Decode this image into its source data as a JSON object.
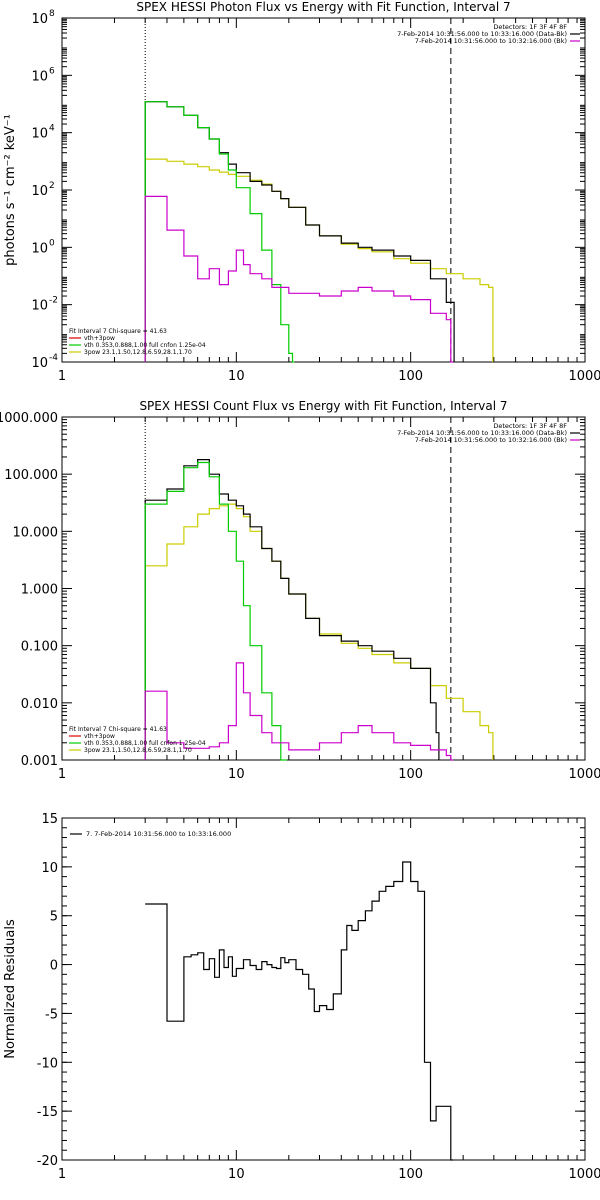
{
  "chart_data": [
    {
      "type": "line",
      "title": "SPEX HESSI Photon Flux vs Energy with Fit Function, Interval 7",
      "xlabel": "",
      "ylabel": "photons s⁻¹ cm⁻² keV⁻¹",
      "xscale": "log",
      "yscale": "log",
      "xlim": [
        1,
        1000
      ],
      "ylim": [
        0.0001,
        100000000
      ],
      "x_ticks": [
        1,
        10,
        100,
        1000
      ],
      "x_tick_labels": [
        "1",
        "10",
        "100",
        "1000"
      ],
      "y_ticks": [
        0.0001,
        0.01,
        1,
        100,
        10000,
        1000000,
        100000000
      ],
      "y_tick_labels": [
        "10",
        "10",
        "10",
        "10",
        "10",
        "10",
        "10"
      ],
      "y_tick_exponents": [
        "-4",
        "-2",
        "0",
        "2",
        "4",
        "6",
        "8"
      ],
      "vlines": [
        {
          "x": 3.0,
          "style": "dotted"
        },
        {
          "x": 170.0,
          "style": "dashed"
        }
      ],
      "legend_top_right": [
        {
          "text": "Detectors: 1F 3F 4F 8F",
          "color": ""
        },
        {
          "text": "7-Feb-2014 10:31:56.000 to 10:33:16.000 (Data-Bk)",
          "color": "#000000"
        },
        {
          "text": "7-Feb-2014 10:31:56.000 to 10:32:16.000 (Bk)",
          "color": "#cc00cc"
        }
      ],
      "legend_bottom_left": [
        {
          "text": "Fit Interval 7   Chi-square = 41.63",
          "color": ""
        },
        {
          "text": "vth+3pow",
          "color": "#dd0000"
        },
        {
          "text": "vth 0.353,0.888,1.00  full cnfon 1.25e-04",
          "color": "#00cc00"
        },
        {
          "text": "3pow 23.1,1.50,12.8,6.59,28.1,1.70",
          "color": "#cccc00"
        }
      ],
      "series": [
        {
          "color": "#cccc00",
          "x": [
            3,
            4,
            5,
            6,
            7,
            8,
            9,
            10,
            12,
            14,
            16,
            18,
            20,
            25,
            30,
            40,
            50,
            60,
            80,
            100,
            130,
            160,
            200,
            250,
            280
          ],
          "values": [
            1200,
            1000,
            800,
            650,
            500,
            420,
            350,
            300,
            220,
            160,
            90,
            50,
            25,
            6,
            2.5,
            1.3,
            0.9,
            0.7,
            0.4,
            0.28,
            0.18,
            0.12,
            0.08,
            0.05,
            0.04
          ]
        },
        {
          "color": "#000000",
          "x": [
            3,
            4,
            5,
            6,
            7,
            8,
            9,
            10,
            12,
            14,
            16,
            18,
            20,
            25,
            30,
            40,
            50,
            60,
            80,
            100,
            130,
            160
          ],
          "values": [
            120000,
            80000,
            40000,
            15000,
            6000,
            2000,
            800,
            400,
            200,
            150,
            90,
            50,
            25,
            6,
            2.5,
            1.4,
            1.0,
            0.8,
            0.5,
            0.35,
            0.08,
            0.012
          ]
        },
        {
          "color": "#00cc00",
          "x": [
            3,
            4,
            5,
            6,
            7,
            8,
            9,
            10,
            12,
            14,
            16,
            18,
            20,
            21
          ],
          "values": [
            120000,
            80000,
            40000,
            15000,
            6000,
            1800,
            500,
            120,
            15,
            0.8,
            0.05,
            0.002,
            0.0002,
            5e-05
          ]
        },
        {
          "color": "#cc00cc",
          "x": [
            3,
            4,
            5,
            6,
            7,
            8,
            9,
            10,
            11,
            12,
            14,
            16,
            20,
            30,
            40,
            50,
            60,
            80,
            100,
            130,
            160,
            170
          ],
          "values": [
            60,
            4,
            0.5,
            0.08,
            0.18,
            0.05,
            0.15,
            0.8,
            0.25,
            0.12,
            0.08,
            0.04,
            0.025,
            0.02,
            0.03,
            0.04,
            0.03,
            0.02,
            0.015,
            0.005,
            0.003,
            5e-05
          ]
        }
      ]
    },
    {
      "type": "line",
      "title": "SPEX HESSI Count Flux vs Energy with Fit Function, Interval 7",
      "xlabel": "",
      "ylabel": "",
      "xscale": "log",
      "yscale": "log",
      "xlim": [
        1,
        1000
      ],
      "ylim": [
        0.001,
        1000
      ],
      "x_ticks": [
        1,
        10,
        100,
        1000
      ],
      "x_tick_labels": [
        "1",
        "10",
        "100",
        "1000"
      ],
      "y_ticks": [
        0.001,
        0.01,
        0.1,
        1,
        10,
        100,
        1000
      ],
      "y_tick_labels": [
        "0.001",
        "0.010",
        "0.100",
        "1.000",
        "10.000",
        "100.000",
        "1000.000"
      ],
      "vlines": [
        {
          "x": 3.0,
          "style": "dotted"
        },
        {
          "x": 170.0,
          "style": "dashed"
        }
      ],
      "legend_top_right": [
        {
          "text": "Detectors: 1F 3F 4F 8F",
          "color": ""
        },
        {
          "text": "7-Feb-2014 10:31:56.000 to 10:33:16.000 (Data-Bk)",
          "color": "#000000"
        },
        {
          "text": "7-Feb-2014 10:31:56.000 to 10:32:16.000 (Bk)",
          "color": "#cc00cc"
        }
      ],
      "legend_bottom_left": [
        {
          "text": "Fit Interval 7   Chi-square = 41.63",
          "color": ""
        },
        {
          "text": "vth+3pow",
          "color": "#dd0000"
        },
        {
          "text": "vth 0.353,0.888,1.00  full cnfon 1.25e-04",
          "color": "#00cc00"
        },
        {
          "text": "3pow 23.1,1.50,12.8,6.59,28.1,1.70",
          "color": "#cccc00"
        }
      ],
      "series": [
        {
          "color": "#cccc00",
          "x": [
            3,
            4,
            5,
            6,
            7,
            8,
            9,
            10,
            11,
            12,
            14,
            16,
            18,
            20,
            25,
            30,
            40,
            50,
            60,
            80,
            100,
            130,
            160,
            200,
            250,
            280
          ],
          "values": [
            2.5,
            6,
            12,
            20,
            25,
            28,
            30,
            25,
            18,
            10,
            5,
            3,
            1.5,
            0.8,
            0.3,
            0.16,
            0.11,
            0.09,
            0.07,
            0.05,
            0.04,
            0.02,
            0.012,
            0.007,
            0.004,
            0.003
          ]
        },
        {
          "color": "#000000",
          "x": [
            3,
            4,
            5,
            6,
            7,
            8,
            9,
            10,
            11,
            12,
            14,
            16,
            18,
            20,
            25,
            30,
            40,
            50,
            60,
            80,
            100,
            130,
            140
          ],
          "values": [
            35,
            55,
            140,
            180,
            100,
            45,
            35,
            28,
            20,
            12,
            5,
            3,
            1.5,
            0.8,
            0.3,
            0.15,
            0.12,
            0.1,
            0.08,
            0.06,
            0.04,
            0.01,
            0.003
          ]
        },
        {
          "color": "#00cc00",
          "x": [
            3,
            4,
            5,
            6,
            7,
            8,
            9,
            10,
            11,
            12,
            14,
            16,
            18,
            19
          ],
          "values": [
            30,
            50,
            130,
            160,
            90,
            30,
            10,
            3,
            0.5,
            0.1,
            0.015,
            0.004,
            0.001,
            0.0008
          ]
        },
        {
          "color": "#cc00cc",
          "x": [
            3,
            4,
            5,
            6,
            7,
            8,
            9,
            10,
            11,
            12,
            14,
            16,
            20,
            30,
            40,
            50,
            60,
            80,
            100,
            130,
            160,
            170
          ],
          "values": [
            0.016,
            0.002,
            0.0016,
            0.0016,
            0.0017,
            0.002,
            0.004,
            0.05,
            0.015,
            0.006,
            0.003,
            0.002,
            0.0015,
            0.002,
            0.003,
            0.004,
            0.003,
            0.002,
            0.0018,
            0.0015,
            0.0012,
            0.0008
          ]
        }
      ]
    },
    {
      "type": "line",
      "title": "",
      "xlabel": "",
      "ylabel": "Normalized Residuals",
      "xscale": "log",
      "yscale": "linear",
      "xlim": [
        1,
        1000
      ],
      "ylim": [
        -20,
        15
      ],
      "x_ticks": [
        1,
        10,
        100,
        1000
      ],
      "x_tick_labels": [
        "1",
        "10",
        "100",
        "1000"
      ],
      "y_ticks": [
        -20,
        -15,
        -10,
        -5,
        0,
        5,
        10,
        15
      ],
      "y_tick_labels": [
        "-20",
        "-15",
        "-10",
        "-5",
        "0",
        "5",
        "10",
        "15"
      ],
      "legend_top_left": [
        {
          "text": "7.  7-Feb-2014 10:31:56.000 to 10:33:16.000",
          "color": "#000000"
        }
      ],
      "series": [
        {
          "color": "#000000",
          "x": [
            3,
            4,
            5,
            5.5,
            6,
            6.5,
            7,
            7.5,
            8,
            8.5,
            9,
            9.5,
            10,
            11,
            12,
            13,
            14,
            15,
            16,
            17,
            18,
            19,
            20,
            22,
            24,
            26,
            28,
            30,
            33,
            36,
            40,
            43,
            46,
            50,
            55,
            60,
            66,
            72,
            80,
            90,
            100,
            110,
            120,
            130,
            140,
            150,
            160,
            170
          ],
          "values": [
            6.2,
            -5.8,
            0.8,
            1.0,
            1.2,
            -0.5,
            0.6,
            -1.3,
            1.5,
            -0.3,
            0.8,
            -1.2,
            -0.4,
            0.5,
            -0.1,
            -0.5,
            0.3,
            0.0,
            -0.3,
            -0.4,
            0.7,
            0.2,
            0.5,
            -0.5,
            -1.0,
            -2.5,
            -4.8,
            -4.2,
            -4.6,
            -3.0,
            1.5,
            4.0,
            3.5,
            4.5,
            5.5,
            6.5,
            7.5,
            8.0,
            8.5,
            10.5,
            8.5,
            7.5,
            -10.0,
            -16.0,
            -14.5,
            -14.5,
            -14.5,
            -20.0
          ]
        }
      ]
    }
  ]
}
